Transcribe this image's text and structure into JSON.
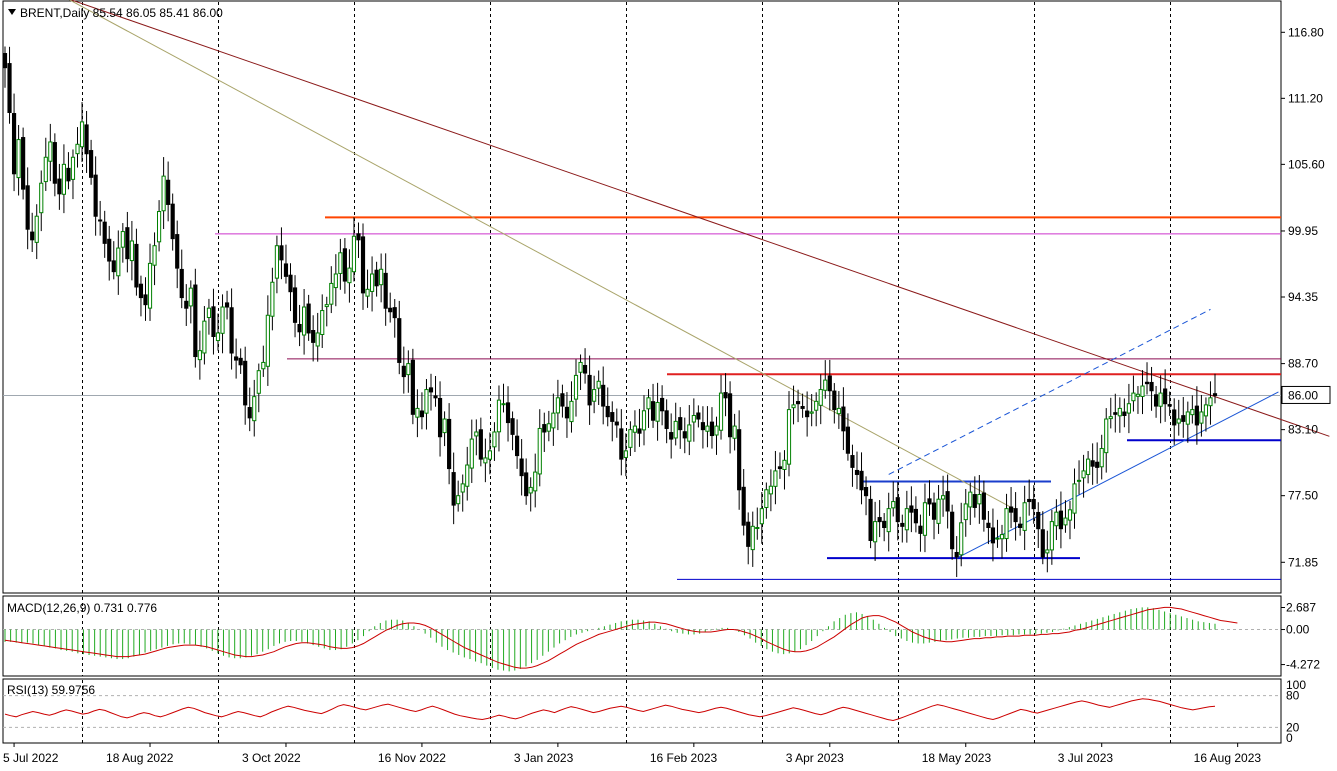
{
  "chart_data": [
    {
      "type": "candlestick",
      "symbol": "BRENT",
      "timeframe": "Daily",
      "header": "BRENT,Daily  85.54 86.05 85.41 86.00",
      "ohlc_last": {
        "open": 85.54,
        "high": 86.05,
        "low": 85.41,
        "close": 86.0
      },
      "current_price": "86.00",
      "price_axis_ticks": [
        "116.80",
        "111.20",
        "105.60",
        "99.95",
        "94.35",
        "88.70",
        "83.10",
        "77.50",
        "71.85"
      ],
      "ylim": [
        69.5,
        119.2
      ],
      "date_labels": [
        "5 Jul 2022",
        "18 Aug 2022",
        "3 Oct 2022",
        "16 Nov 2022",
        "3 Jan 2023",
        "16 Feb 2023",
        "3 Apr 2023",
        "18 May 2023",
        "3 Jul 2023",
        "16 Aug 2023"
      ],
      "grid": "vertical dashed",
      "colors": {
        "up": "#008000",
        "down": "#000000",
        "wick": "#000000",
        "background": "#ffffff",
        "price_marker": "#ffffff"
      },
      "closes": [
        113.8,
        110.0,
        104.8,
        107.7,
        103.5,
        100.1,
        99.2,
        101.2,
        104.0,
        106.2,
        107.5,
        104.0,
        103.1,
        105.6,
        104.2,
        106.2,
        107.3,
        109.2,
        106.5,
        104.5,
        101.2,
        100.8,
        98.9,
        97.4,
        96.5,
        98.5,
        99.9,
        97.6,
        99.1,
        95.2,
        94.3,
        93.7,
        97.2,
        98.7,
        101.6,
        104.6,
        102.2,
        99.3,
        96.8,
        94.3,
        93.4,
        95.1,
        89.3,
        89.8,
        92.3,
        93.4,
        91.0,
        91.3,
        93.5,
        93.5,
        89.6,
        89.0,
        88.6,
        85.2,
        84.1,
        85.9,
        88.1,
        88.8,
        92.8,
        95.6,
        98.7,
        97.5,
        96.1,
        94.8,
        92.2,
        91.4,
        93.5,
        91.3,
        90.5,
        91.3,
        93.2,
        93.7,
        95.5,
        96.3,
        98.1,
        95.7,
        96.8,
        99.5,
        99.2,
        94.7,
        95.0,
        96.3,
        95.3,
        96.7,
        93.4,
        93.1,
        92.6,
        88.8,
        87.6,
        88.7,
        84.4,
        84.9,
        84.2,
        86.5,
        86.3,
        85.8,
        82.5,
        84.0,
        79.8,
        76.7,
        77.5,
        78.5,
        80.1,
        82.3,
        82.9,
        80.6,
        80.7,
        81.3,
        82.9,
        85.6,
        85.3,
        83.7,
        82.7,
        80.9,
        79.2,
        77.5,
        78.2,
        79.5,
        83.2,
        82.9,
        83.6,
        84.5,
        85.8,
        85.1,
        84.1,
        85.5,
        87.7,
        88.8,
        87.9,
        85.2,
        86.5,
        87.2,
        85.1,
        84.2,
        83.8,
        83.5,
        80.6,
        81.3,
        83.1,
        83.4,
        82.8,
        84.7,
        85.8,
        83.9,
        85.4,
        84.7,
        83.2,
        82.3,
        83.8,
        83.1,
        82.4,
        83.5,
        84.3,
        84.0,
        83.1,
        83.4,
        82.6,
        83.4,
        86.2,
        85.8,
        82.5,
        83.4,
        78.0,
        75.0,
        73.2,
        74.9,
        74.8,
        76.4,
        78.0,
        78.3,
        79.6,
        79.8,
        80.5,
        84.8,
        85.2,
        85.3,
        84.9,
        84.2,
        84.6,
        85.5,
        86.5,
        87.3,
        86.4,
        84.8,
        84.9,
        83.0,
        81.1,
        79.9,
        79.3,
        78.0,
        77.5,
        73.7,
        75.3,
        75.3,
        74.8,
        76.4,
        77.0,
        75.3,
        74.9,
        76.4,
        76.1,
        75.2,
        74.3,
        76.9,
        76.8,
        75.5,
        77.2,
        77.5,
        76.2,
        73.0,
        72.3,
        75.2,
        76.8,
        77.8,
        76.5,
        77.6,
        75.5,
        74.8,
        73.5,
        73.9,
        74.2,
        76.4,
        76.1,
        75.3,
        74.8,
        76.9,
        77.0,
        76.4,
        74.7,
        72.3,
        72.9,
        75.3,
        76.1,
        74.7,
        75.6,
        76.3,
        78.5,
        78.8,
        79.6,
        80.6,
        80.0,
        79.9,
        81.5,
        84.0,
        84.2,
        84.4,
        84.9,
        84.3,
        85.3,
        86.2,
        86.1,
        86.8,
        87.0,
        86.4,
        85.1,
        86.2,
        85.3,
        85.1,
        83.5,
        84.0,
        83.8,
        84.6,
        84.8,
        83.5,
        84.6,
        85.2,
        85.8,
        86.0
      ],
      "horizontal_levels": [
        {
          "value": 101.1,
          "color": "#ff4500"
        },
        {
          "value": 99.7,
          "color": "#cc33cc"
        },
        {
          "value": 89.1,
          "color": "#8b0a50"
        },
        {
          "value": 87.8,
          "color": "#e02020"
        },
        {
          "value": 86.0,
          "color": "#a0a8b0"
        },
        {
          "value": 82.2,
          "color": "#0000cc"
        },
        {
          "value": 78.7,
          "color": "#1a3dcc"
        },
        {
          "value": 72.2,
          "color": "#0000cc"
        },
        {
          "value": 70.4,
          "color": "#0000cc"
        }
      ],
      "trend_lines": [
        {
          "from": [
            0,
            121.5
          ],
          "to": [
            279,
            84.3
          ],
          "color": "#8b1a1a"
        },
        {
          "from": [
            0,
            122.5
          ],
          "to": [
            210,
            79.0
          ],
          "color": "#a9a46a"
        }
      ],
      "channel_lines": [
        {
          "from": [
            210,
            72.2
          ],
          "to": [
            281,
            86.3
          ],
          "color": "#1a55d6",
          "style": "solid"
        },
        {
          "from": [
            195,
            79.3
          ],
          "to": [
            266,
            93.3
          ],
          "color": "#1a55d6",
          "style": "dashed"
        }
      ]
    },
    {
      "type": "macd",
      "header": "MACD(12,26,9) 0.731 0.776",
      "parameters": [
        12,
        26,
        9
      ],
      "main_value": 0.731,
      "signal_value": 0.776,
      "axis_ticks": [
        "2.687",
        "0.00",
        "-4.272"
      ],
      "ylim": [
        -5.3,
        3.6
      ],
      "colors": {
        "histogram": "#22aa22",
        "signal": "#cc0000"
      },
      "histogram": [
        -1.5,
        -1.5,
        -1.6,
        -1.6,
        -1.6,
        -1.7,
        -1.9,
        -2.0,
        -2.2,
        -2.3,
        -2.5,
        -2.6,
        -2.7,
        -2.9,
        -3.0,
        -3.1,
        -3.2,
        -3.3,
        -3.4,
        -3.5,
        -3.6,
        -3.6,
        -3.5,
        -3.3,
        -3.1,
        -2.8,
        -2.6,
        -2.4,
        -2.2,
        -2.0,
        -1.8,
        -1.7,
        -1.7,
        -1.8,
        -1.9,
        -2.1,
        -2.3,
        -2.6,
        -2.9,
        -3.2,
        -3.4,
        -3.5,
        -3.5,
        -3.4,
        -3.2,
        -3.0,
        -2.7,
        -2.4,
        -2.0,
        -1.7,
        -1.5,
        -1.4,
        -1.4,
        -1.5,
        -1.7,
        -1.9,
        -2.1,
        -2.3,
        -2.5,
        -2.5,
        -2.4,
        -2.1,
        -1.7,
        -1.3,
        -0.8,
        -0.2,
        0.4,
        0.8,
        1.1,
        1.2,
        1.2,
        1.1,
        0.8,
        0.4,
        0.0,
        -0.5,
        -1.0,
        -1.6,
        -2.1,
        -2.5,
        -2.8,
        -3.1,
        -3.4,
        -3.6,
        -3.9,
        -4.1,
        -4.4,
        -4.7,
        -4.9,
        -5.0,
        -5.1,
        -5.0,
        -4.8,
        -4.5,
        -4.1,
        -3.7,
        -3.2,
        -2.7,
        -2.2,
        -1.7,
        -1.3,
        -0.9,
        -0.6,
        -0.4,
        -0.2,
        0.0,
        0.2,
        0.4,
        0.6,
        0.8,
        1.0,
        1.1,
        1.2,
        1.2,
        1.1,
        1.0,
        0.7,
        0.4,
        0.1,
        -0.2,
        -0.4,
        -0.5,
        -0.6,
        -0.6,
        -0.5,
        -0.3,
        -0.1,
        0.1,
        0.2,
        0.2,
        0.0,
        -0.3,
        -0.7,
        -1.1,
        -1.6,
        -2.0,
        -2.4,
        -2.7,
        -2.9,
        -3.0,
        -2.9,
        -2.7,
        -2.4,
        -1.9,
        -1.4,
        -0.8,
        -0.2,
        0.4,
        1.0,
        1.4,
        1.8,
        2.0,
        2.1,
        1.9,
        1.6,
        1.2,
        0.7,
        0.2,
        -0.3,
        -0.8,
        -1.1,
        -1.4,
        -1.6,
        -1.7,
        -1.7,
        -1.6,
        -1.5,
        -1.4,
        -1.3,
        -1.2,
        -1.1,
        -1.0,
        -1.0,
        -0.9,
        -0.9,
        -0.8,
        -0.8,
        -0.8,
        -0.7,
        -0.7,
        -0.7,
        -0.6,
        -0.6,
        -0.6,
        -0.5,
        -0.5,
        -0.4,
        -0.3,
        -0.1,
        0.1,
        0.3,
        0.5,
        0.7,
        0.9,
        1.1,
        1.3,
        1.5,
        1.7,
        1.9,
        2.1,
        2.3,
        2.5,
        2.6,
        2.7,
        2.7,
        2.6,
        2.4,
        2.2,
        2.0,
        1.8,
        1.6,
        1.4,
        1.2,
        1.0,
        0.9,
        0.8,
        0.7
      ],
      "signal": [
        -1.3,
        -1.4,
        -1.5,
        -1.6,
        -1.7,
        -1.8,
        -1.9,
        -2.0,
        -2.1,
        -2.2,
        -2.3,
        -2.4,
        -2.5,
        -2.6,
        -2.7,
        -2.8,
        -2.9,
        -3.0,
        -3.1,
        -3.2,
        -3.3,
        -3.3,
        -3.3,
        -3.2,
        -3.1,
        -3.0,
        -2.8,
        -2.6,
        -2.4,
        -2.2,
        -2.1,
        -2.0,
        -1.9,
        -1.9,
        -1.9,
        -2.0,
        -2.1,
        -2.3,
        -2.5,
        -2.7,
        -2.9,
        -3.1,
        -3.2,
        -3.3,
        -3.3,
        -3.2,
        -3.1,
        -2.9,
        -2.7,
        -2.4,
        -2.1,
        -1.9,
        -1.7,
        -1.6,
        -1.6,
        -1.7,
        -1.8,
        -1.9,
        -2.1,
        -2.2,
        -2.3,
        -2.3,
        -2.2,
        -2.0,
        -1.7,
        -1.3,
        -0.9,
        -0.5,
        -0.1,
        0.2,
        0.5,
        0.7,
        0.8,
        0.8,
        0.7,
        0.5,
        0.2,
        -0.2,
        -0.6,
        -1.0,
        -1.4,
        -1.8,
        -2.2,
        -2.5,
        -2.8,
        -3.1,
        -3.4,
        -3.7,
        -4.0,
        -4.2,
        -4.4,
        -4.6,
        -4.7,
        -4.7,
        -4.6,
        -4.4,
        -4.1,
        -3.8,
        -3.4,
        -3.0,
        -2.6,
        -2.2,
        -1.8,
        -1.5,
        -1.2,
        -0.9,
        -0.6,
        -0.4,
        -0.2,
        0.0,
        0.2,
        0.4,
        0.6,
        0.7,
        0.8,
        0.9,
        0.9,
        0.8,
        0.7,
        0.5,
        0.3,
        0.1,
        -0.1,
        -0.2,
        -0.3,
        -0.3,
        -0.3,
        -0.2,
        -0.1,
        0.0,
        0.0,
        -0.1,
        -0.3,
        -0.5,
        -0.8,
        -1.1,
        -1.5,
        -1.8,
        -2.1,
        -2.4,
        -2.6,
        -2.7,
        -2.7,
        -2.6,
        -2.4,
        -2.1,
        -1.7,
        -1.3,
        -0.9,
        -0.4,
        0.1,
        0.6,
        1.0,
        1.4,
        1.6,
        1.7,
        1.7,
        1.5,
        1.2,
        0.9,
        0.5,
        0.1,
        -0.3,
        -0.6,
        -0.9,
        -1.1,
        -1.3,
        -1.4,
        -1.5,
        -1.5,
        -1.4,
        -1.3,
        -1.2,
        -1.1,
        -1.1,
        -1.0,
        -1.0,
        -0.9,
        -0.9,
        -0.8,
        -0.8,
        -0.8,
        -0.7,
        -0.7,
        -0.7,
        -0.6,
        -0.6,
        -0.5,
        -0.5,
        -0.4,
        -0.3,
        -0.1,
        0.0,
        0.2,
        0.4,
        0.6,
        0.8,
        1.0,
        1.2,
        1.4,
        1.6,
        1.8,
        2.0,
        2.2,
        2.4,
        2.5,
        2.6,
        2.7,
        2.7,
        2.6,
        2.5,
        2.3,
        2.1,
        1.9,
        1.7,
        1.5,
        1.3,
        1.1,
        1.0,
        0.9,
        0.8
      ]
    },
    {
      "type": "rsi",
      "header": "RSI(13) 59.9756",
      "period": 13,
      "value": 59.9756,
      "axis_ticks": [
        "100",
        "80",
        "20",
        "0"
      ],
      "ylim": [
        0,
        100
      ],
      "levels": [
        80,
        20
      ],
      "colors": {
        "line": "#cc0000",
        "level": "#b0b0b0"
      },
      "values": [
        45,
        42,
        40,
        44,
        47,
        50,
        48,
        45,
        43,
        46,
        50,
        53,
        51,
        48,
        45,
        47,
        51,
        54,
        52,
        48,
        44,
        40,
        38,
        41,
        45,
        48,
        46,
        42,
        40,
        43,
        47,
        51,
        55,
        58,
        56,
        52,
        48,
        45,
        42,
        40,
        43,
        47,
        50,
        48,
        45,
        42,
        40,
        44,
        49,
        53,
        57,
        60,
        58,
        55,
        52,
        50,
        48,
        46,
        50,
        55,
        60,
        63,
        61,
        58,
        55,
        53,
        56,
        59,
        62,
        64,
        61,
        58,
        55,
        52,
        50,
        53,
        57,
        60,
        57,
        53,
        49,
        45,
        42,
        40,
        38,
        36,
        35,
        37,
        40,
        43,
        41,
        38,
        36,
        39,
        43,
        47,
        50,
        53,
        51,
        48,
        52,
        56,
        59,
        57,
        54,
        51,
        48,
        50,
        53,
        56,
        58,
        60,
        58,
        55,
        52,
        50,
        53,
        56,
        59,
        62,
        60,
        57,
        54,
        52,
        50,
        48,
        50,
        53,
        56,
        58,
        56,
        53,
        50,
        47,
        44,
        42,
        40,
        42,
        45,
        48,
        51,
        54,
        57,
        55,
        52,
        49,
        46,
        44,
        47,
        51,
        55,
        58,
        56,
        53,
        50,
        47,
        44,
        41,
        38,
        35,
        33,
        36,
        40,
        44,
        48,
        52,
        56,
        60,
        63,
        61,
        58,
        55,
        52,
        49,
        46,
        43,
        40,
        37,
        35,
        38,
        42,
        46,
        50,
        54,
        52,
        49,
        47,
        50,
        53,
        56,
        59,
        62,
        65,
        68,
        70,
        68,
        65,
        62,
        60,
        58,
        61,
        64,
        67,
        70,
        72,
        74,
        73,
        71,
        69,
        66,
        63,
        60,
        57,
        55,
        53,
        55,
        57,
        59,
        60
      ]
    }
  ]
}
